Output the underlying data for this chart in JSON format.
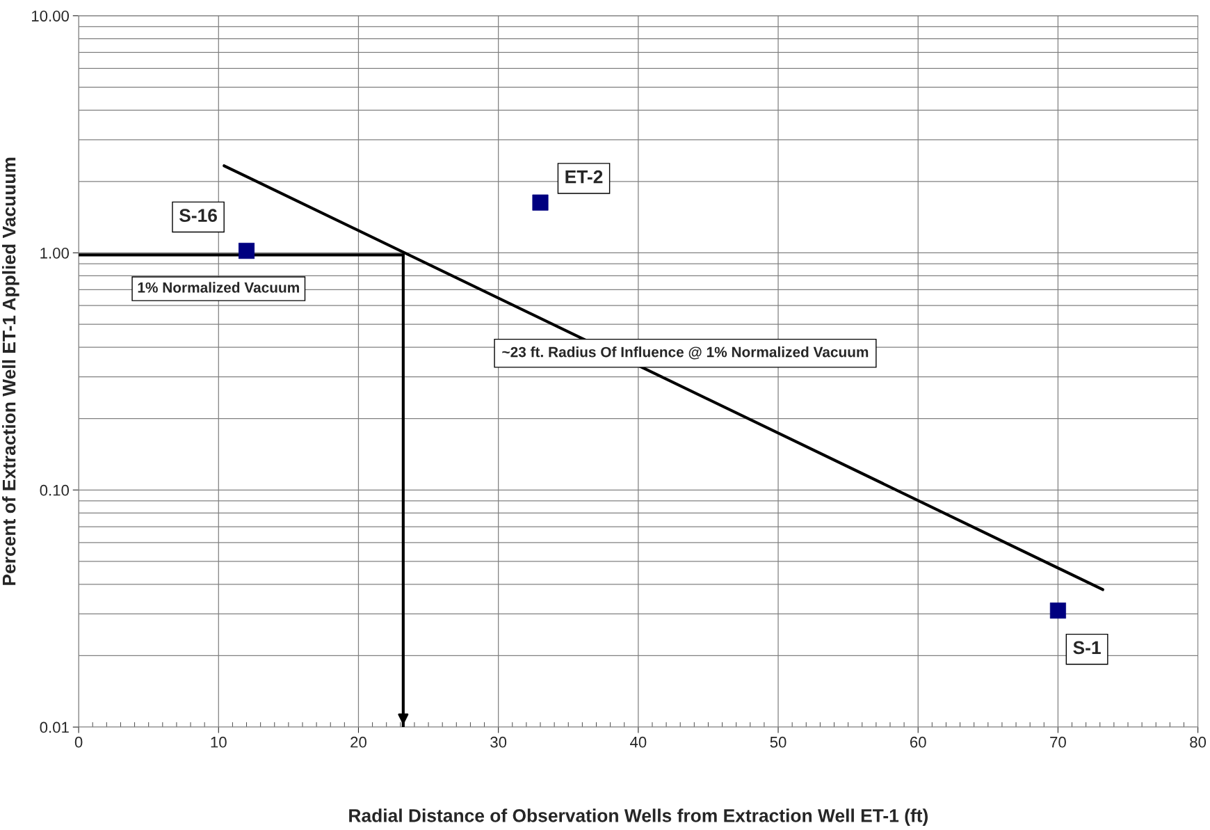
{
  "chart_data": {
    "type": "scatter",
    "xlabel": "Radial Distance of Observation Wells from Extraction Well ET-1 (ft)",
    "ylabel": "Percent of Extraction Well ET-1 Applied Vacuuum",
    "log": "y",
    "grid": true,
    "marker": "square",
    "xlim": [
      0,
      80
    ],
    "xticks": [
      0,
      10,
      20,
      30,
      40,
      50,
      60,
      70,
      80
    ],
    "ylim": [
      0.01,
      10
    ],
    "yticks": [
      {
        "value": 0.01,
        "label": "0.01"
      },
      {
        "value": 0.1,
        "label": "0.10"
      },
      {
        "value": 1,
        "label": "1.00"
      },
      {
        "value": 10,
        "label": "10.00"
      }
    ],
    "series": [
      {
        "color": "#000080",
        "x": [
          12,
          33,
          70
        ],
        "values": [
          1.02,
          1.63,
          0.031
        ]
      },
      {
        "type": "line",
        "color": "#000000",
        "marker": "none",
        "x": [
          10.4,
          73.2
        ],
        "values": [
          2.33,
          0.038
        ]
      },
      {
        "type": "line",
        "color": "#000000",
        "marker": "none",
        "x": [
          0,
          23.2
        ],
        "values": [
          0.98,
          0.98
        ]
      },
      {
        "type": "line",
        "color": "#000000",
        "marker": "none",
        "x": [
          23.2,
          23.2
        ],
        "values": [
          0.98,
          0.01
        ]
      }
    ],
    "annotations": [
      {
        "text": "S-16",
        "x": 12,
        "y": 1.02
      },
      {
        "text": "ET-2",
        "x": 33,
        "y": 1.63
      },
      {
        "text": "S-1",
        "x": 70,
        "y": 0.031
      },
      {
        "text": "1% Normalized Vacuum",
        "x": 10,
        "y": 0.98
      },
      "~23 ft. Radius Of Influence @ 1% Normalized Vacuum"
    ]
  }
}
